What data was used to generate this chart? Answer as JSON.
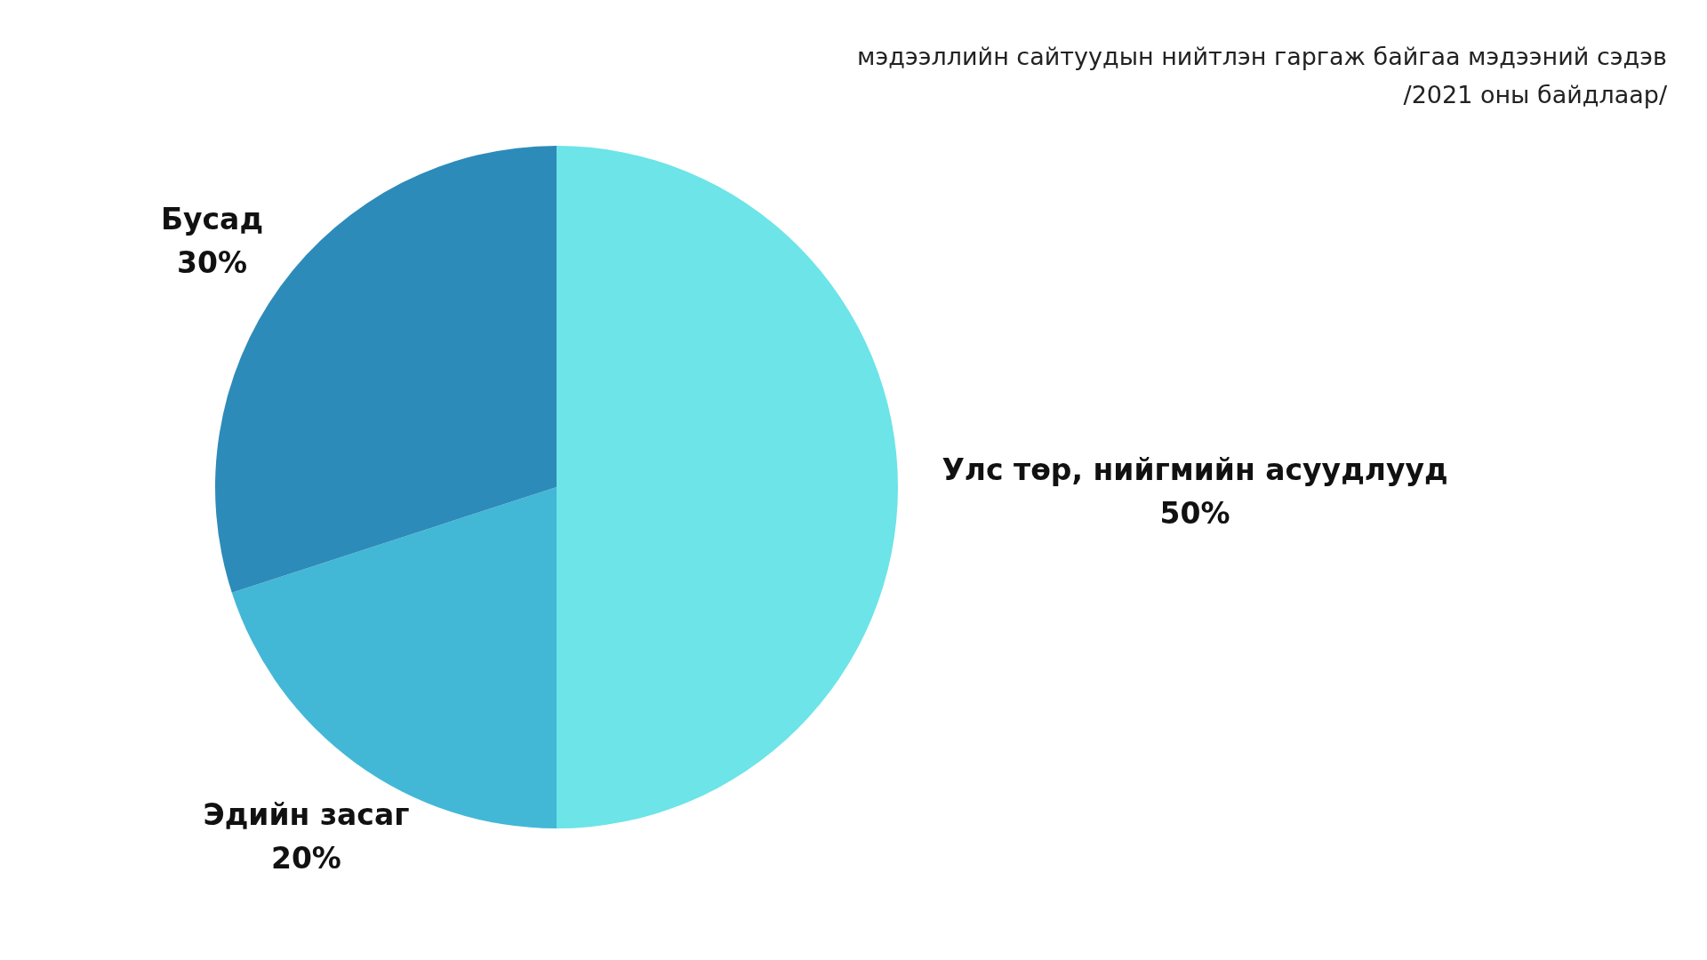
{
  "chart_data": {
    "type": "pie",
    "title": "мэдээллийн сайтуудын нийтлэн гаргаж байгаа мэдээний сэдэв",
    "subtitle": "/2021 оны байдлаар/",
    "categories": [
      "Улс төр, нийгмийн асуудлууд",
      "Эдийн засаг",
      "Бусад"
    ],
    "values": [
      50,
      20,
      30
    ],
    "colors": [
      "#6ce4e8",
      "#42b8d6",
      "#2d8bb9"
    ],
    "value_labels": [
      "50%",
      "20%",
      "30%"
    ]
  }
}
